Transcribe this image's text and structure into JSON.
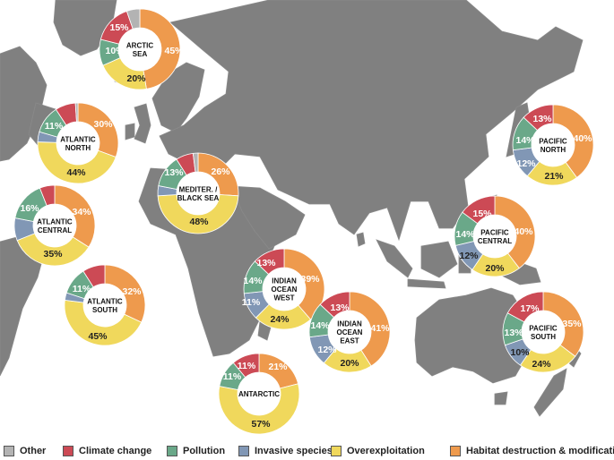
{
  "colors": {
    "ocean": "#ffffff",
    "land": "#808080",
    "land_stroke": "#8a8a8a",
    "Other": "#b3b3b3",
    "Climate change": "#cc4a55",
    "Pollution": "#6aa889",
    "Invasive species": "#8197b5",
    "Overexploitation": "#f0d85c",
    "Habitat destruction & modification": "#ee9a4d"
  },
  "legend": [
    {
      "key": "Other",
      "label": "Other"
    },
    {
      "key": "Climate change",
      "label": "Climate change"
    },
    {
      "key": "Pollution",
      "label": "Pollution"
    },
    {
      "key": "Invasive species",
      "label": "Invasive species"
    },
    {
      "key": "Overexploitation",
      "label": "Overexploitation"
    },
    {
      "key": "Habitat destruction & modification",
      "label": "Habitat destruction & modification"
    }
  ],
  "regions": [
    {
      "id": "arctic-sea",
      "name": [
        "ARCTIC",
        "SEA"
      ],
      "shares": {
        "Habitat destruction & modification": 45,
        "Overexploitation": 20,
        "Pollution": 10,
        "Climate change": 15,
        "Other": 5
      }
    },
    {
      "id": "atlantic-north",
      "name": [
        "ATLANTIC",
        "NORTH"
      ],
      "shares": {
        "Habitat destruction & modification": 30,
        "Overexploitation": 44,
        "Pollution": 11,
        "Invasive species": 4,
        "Climate change": 8,
        "Other": 1
      }
    },
    {
      "id": "atlantic-central",
      "name": [
        "ATLANTIC",
        "CENTRAL"
      ],
      "shares": {
        "Habitat destruction & modification": 34,
        "Overexploitation": 35,
        "Invasive species": 9,
        "Pollution": 16,
        "Climate change": 6
      }
    },
    {
      "id": "atlantic-south",
      "name": [
        "ATLANTIC",
        "SOUTH"
      ],
      "shares": {
        "Habitat destruction & modification": 32,
        "Overexploitation": 45,
        "Invasive species": 3,
        "Pollution": 11,
        "Climate change": 9
      }
    },
    {
      "id": "mediter-black-sea",
      "name": [
        "MEDITER. /",
        "BLACK SEA"
      ],
      "shares": {
        "Habitat destruction & modification": 26,
        "Overexploitation": 48,
        "Invasive species": 4,
        "Pollution": 13,
        "Climate change": 7,
        "Other": 2
      }
    },
    {
      "id": "indian-ocean-west",
      "name": [
        "INDIAN",
        "OCEAN",
        "WEST"
      ],
      "shares": {
        "Habitat destruction & modification": 39,
        "Overexploitation": 24,
        "Invasive species": 11,
        "Pollution": 14,
        "Climate change": 13
      }
    },
    {
      "id": "indian-ocean-east",
      "name": [
        "INDIAN",
        "OCEAN",
        "EAST"
      ],
      "shares": {
        "Habitat destruction & modification": 41,
        "Overexploitation": 20,
        "Invasive species": 12,
        "Pollution": 14,
        "Climate change": 13
      }
    },
    {
      "id": "antarctic",
      "name": [
        "ANTARCTIC"
      ],
      "shares": {
        "Habitat destruction & modification": 21,
        "Overexploitation": 57,
        "Pollution": 11,
        "Climate change": 11
      }
    },
    {
      "id": "pacific-north",
      "name": [
        "PACIFIC",
        "NORTH"
      ],
      "shares": {
        "Habitat destruction & modification": 40,
        "Overexploitation": 21,
        "Invasive species": 12,
        "Pollution": 14,
        "Climate change": 13
      }
    },
    {
      "id": "pacific-central",
      "name": [
        "PACIFIC",
        "CENTRAL"
      ],
      "shares": {
        "Habitat destruction & modification": 40,
        "Overexploitation": 20,
        "Invasive species": 12,
        "Pollution": 14,
        "Climate change": 15
      }
    },
    {
      "id": "pacific-south",
      "name": [
        "PACIFIC",
        "SOUTH"
      ],
      "shares": {
        "Habitat destruction & modification": 35,
        "Overexploitation": 24,
        "Invasive species": 10,
        "Pollution": 13,
        "Climate change": 17
      }
    }
  ],
  "pct_labels": {
    "arctic-sea": [
      "15%",
      "10%",
      "45%",
      "20%"
    ],
    "atlantic-north": [
      "11%",
      "30%",
      "44%"
    ],
    "atlantic-central": [
      "16%",
      "34%",
      "35%"
    ],
    "atlantic-south": [
      "11%",
      "32%",
      "45%"
    ],
    "mediter-black-sea": [
      "13%",
      "26%",
      "48%"
    ],
    "indian-ocean-west": [
      "13%",
      "14%",
      "39%",
      "11%",
      "24%"
    ],
    "indian-ocean-east": [
      "13%",
      "14%",
      "41%",
      "12%",
      "20%"
    ],
    "antarctic": [
      "11%",
      "11%",
      "21%",
      "57%"
    ],
    "pacific-north": [
      "13%",
      "14%",
      "40%",
      "12%",
      "21%"
    ],
    "pacific-central": [
      "15%",
      "14%",
      "40%",
      "12%",
      "20%"
    ],
    "pacific-south": [
      "17%",
      "13%",
      "35%",
      "10%",
      "24%"
    ]
  }
}
